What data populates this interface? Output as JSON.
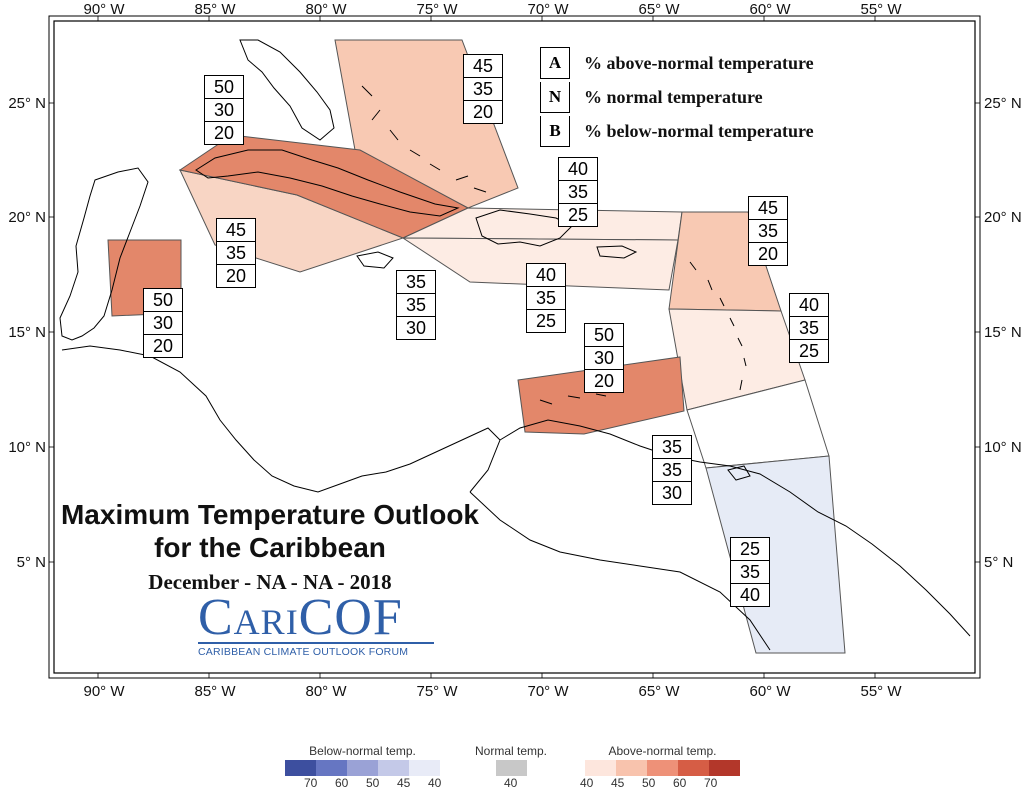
{
  "map": {
    "top_axis": [
      "90° W",
      "85° W",
      "80° W",
      "75° W",
      "70° W",
      "65° W",
      "60° W",
      "55° W"
    ],
    "bottom_axis": [
      "90° W",
      "85° W",
      "80° W",
      "75° W",
      "70° W",
      "65° W",
      "60° W",
      "55° W"
    ],
    "left_axis": [
      "25° N",
      "20° N",
      "15° N",
      "10° N",
      "5° N"
    ],
    "right_axis": [
      "25° N",
      "20° N",
      "15° N",
      "10° N",
      "5° N"
    ]
  },
  "key": {
    "rows": [
      {
        "letter": "A",
        "text": "% above-normal temperature"
      },
      {
        "letter": "N",
        "text": "% normal temperature"
      },
      {
        "letter": "B",
        "text": "% below-normal temperature"
      }
    ]
  },
  "zones": [
    {
      "name": "bahamas",
      "above": "45",
      "normal": "35",
      "below": "20",
      "fill": "#f8c9b3"
    },
    {
      "name": "cuba",
      "above": "50",
      "normal": "30",
      "below": "20",
      "fill": "#e3876a"
    },
    {
      "name": "cayman-jamaica-west",
      "above": "45",
      "normal": "35",
      "below": "20",
      "fill": "#f8d5c4"
    },
    {
      "name": "jamaica",
      "above": "35",
      "normal": "35",
      "below": "30",
      "fill": "#ffffff"
    },
    {
      "name": "hispaniola-north",
      "above": "40",
      "normal": "35",
      "below": "25",
      "fill": "#fdece4"
    },
    {
      "name": "hispaniola-south",
      "above": "40",
      "normal": "35",
      "below": "25",
      "fill": "#fdece4"
    },
    {
      "name": "belize",
      "above": "50",
      "normal": "30",
      "below": "20",
      "fill": "#e3876a"
    },
    {
      "name": "leeward-islands",
      "above": "45",
      "normal": "35",
      "below": "20",
      "fill": "#f8c9b3"
    },
    {
      "name": "windward-islands",
      "above": "40",
      "normal": "35",
      "below": "25",
      "fill": "#fdece4"
    },
    {
      "name": "abc-islands",
      "above": "50",
      "normal": "30",
      "below": "20",
      "fill": "#e3876a"
    },
    {
      "name": "trinidad-tobago",
      "above": "35",
      "normal": "35",
      "below": "30",
      "fill": "#ffffff"
    },
    {
      "name": "guianas",
      "above": "25",
      "normal": "35",
      "below": "40",
      "fill": "#e6ebf6"
    }
  ],
  "title": {
    "line1": "Maximum Temperature Outlook",
    "line2": "for the Caribbean",
    "period": "December - NA - NA - 2018"
  },
  "logo": {
    "name": "CariCOF",
    "subtitle": "CARIBBEAN CLIMATE OUTLOOK FORUM"
  },
  "colorbar": {
    "below": {
      "title": "Below-normal temp.",
      "labels": [
        "70",
        "60",
        "50",
        "45",
        "40"
      ],
      "colors": [
        "#3d4f9f",
        "#6676c2",
        "#9aa2d6",
        "#c4c9e8",
        "#e8ebf7"
      ]
    },
    "normal": {
      "title": "Normal temp.",
      "labels": [
        "40"
      ],
      "colors": [
        "#c8c8c8"
      ]
    },
    "above": {
      "title": "Above-normal temp.",
      "labels": [
        "40",
        "45",
        "50",
        "60",
        "70"
      ],
      "colors": [
        "#fde6dd",
        "#f8c3ad",
        "#ee9178",
        "#d65d45",
        "#b3372a"
      ]
    }
  }
}
